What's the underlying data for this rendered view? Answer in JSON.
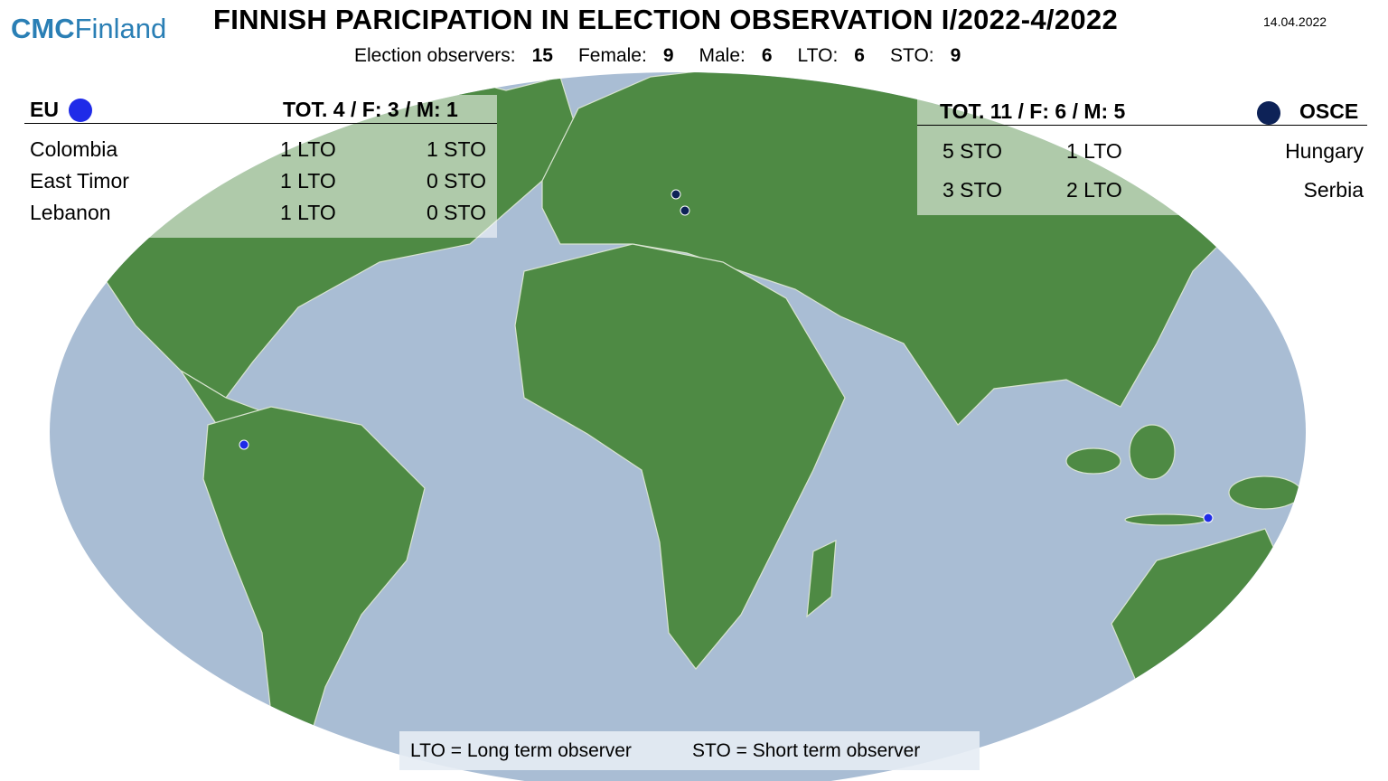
{
  "header": {
    "logo": {
      "strong": "CMC",
      "light": "Finland"
    },
    "title": "FINNISH PARICIPATION IN ELECTION OBSERVATION I/2022-4/2022",
    "date": "14.04.2022",
    "stats": [
      {
        "label": "Election observers:",
        "value": 15
      },
      {
        "label": "Female:",
        "value": 9
      },
      {
        "label": "Male:",
        "value": 6
      },
      {
        "label": "LTO:",
        "value": 6
      },
      {
        "label": "STO:",
        "value": 9
      }
    ]
  },
  "eu": {
    "name": "EU",
    "total": "TOT. 4 / F: 3 / M: 1",
    "rows": [
      [
        "Colombia",
        "1 LTO",
        "1 STO"
      ],
      [
        "East Timor",
        "1 LTO",
        "0 STO"
      ],
      [
        "Lebanon",
        "1 LTO",
        "0 STO"
      ]
    ]
  },
  "osce": {
    "name": "OSCE",
    "total": "TOT. 11 / F: 6 / M: 5",
    "rows": [
      [
        "5 STO",
        "1 LTO",
        "Hungary"
      ],
      [
        "3 STO",
        "2 LTO",
        "Serbia"
      ]
    ]
  },
  "legend": [
    "LTO = Long term observer",
    "STO = Short term observer"
  ]
}
